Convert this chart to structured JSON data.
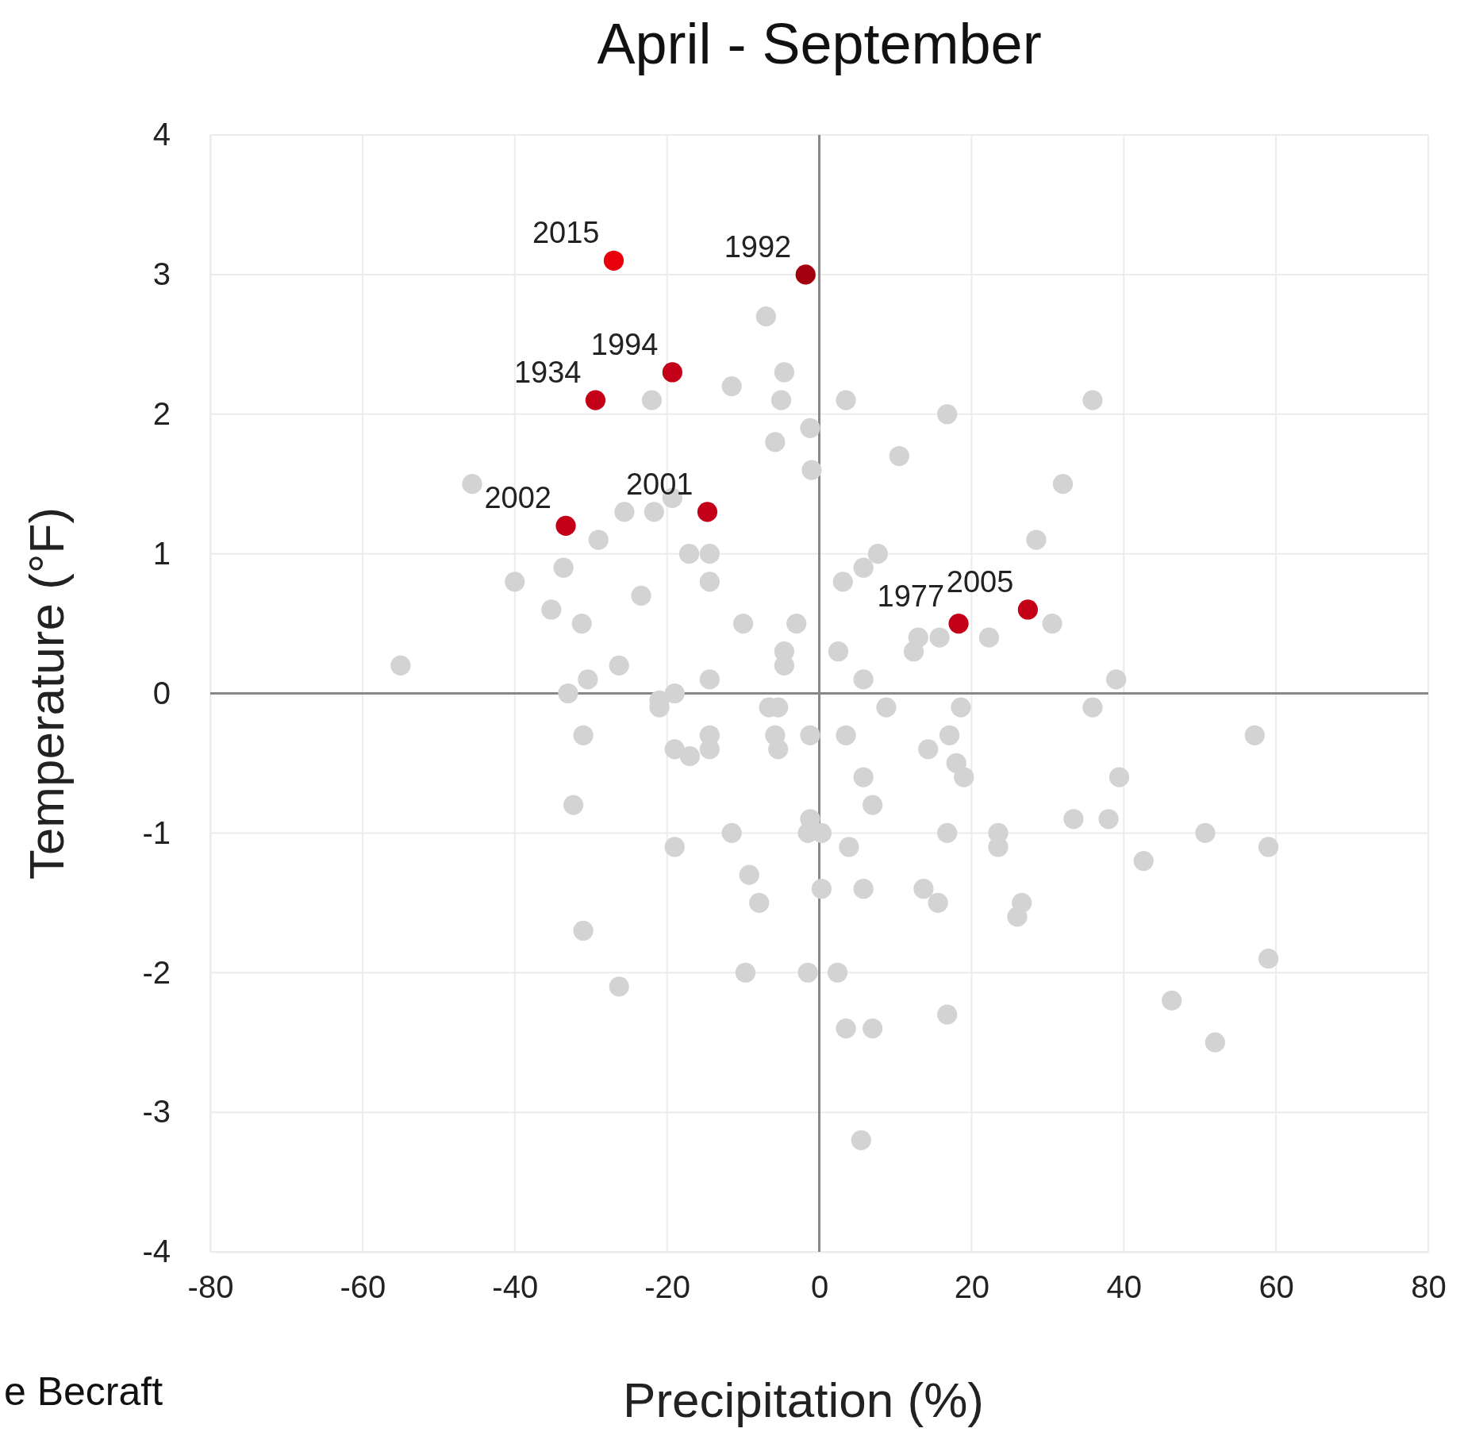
{
  "chart_data": {
    "type": "scatter",
    "title": "April - September",
    "xlabel": "Precipitation (%)",
    "ylabel": "Temperature (°F)",
    "xlim": [
      -80,
      80
    ],
    "xticks": [
      -80,
      -60,
      -40,
      -20,
      0,
      20,
      40,
      60,
      80
    ],
    "ylim": [
      -4,
      4
    ],
    "yticks": [
      -4,
      -3,
      -2,
      -1,
      0,
      1,
      2,
      3,
      4
    ],
    "grid": true,
    "marker": "circle",
    "series": [
      {
        "color": "#d3d3d3",
        "x": [
          -7,
          -11.5,
          -4.6,
          -5,
          -22,
          3.5,
          -1.2,
          -5.8,
          16.8,
          35.9,
          -1,
          10.5,
          32,
          -45.6,
          -25.6,
          -21.7,
          -19.3,
          -29,
          28.5,
          7.7,
          -17.1,
          -14.4,
          -33.6,
          5.8,
          3.1,
          -40,
          -14.4,
          -23.4,
          -35.2,
          -31.2,
          -10,
          -3,
          22.3,
          30.6,
          13,
          12.4,
          15.8,
          -4.6,
          -4.6,
          2.5,
          -55,
          -26.3,
          -30.4,
          -14.4,
          5.8,
          39,
          -33,
          -21,
          -19,
          -21,
          -6.6,
          -5.4,
          8.8,
          18.6,
          35.9,
          -31,
          -14.4,
          -5.8,
          -1.2,
          3.5,
          17.1,
          57.2,
          -19,
          -17,
          -14.4,
          -5.4,
          14.3,
          18,
          19,
          5.8,
          39.4,
          -32.3,
          7,
          -1.2,
          33.4,
          38,
          -11.5,
          -1.5,
          0.3,
          16.8,
          23.5,
          50.7,
          -19,
          3.9,
          23.5,
          59,
          42.6,
          -9.2,
          -7.9,
          5.8,
          0.3,
          13.7,
          15.6,
          26.6,
          26,
          -31,
          -9.7,
          -1.5,
          2.4,
          -26.3,
          59,
          46.3,
          16.8,
          3.5,
          7,
          52,
          5.5
        ],
        "values": [
          2.7,
          2.2,
          2.3,
          2.1,
          2.1,
          2.1,
          1.9,
          1.8,
          2.0,
          2.1,
          1.6,
          1.7,
          1.5,
          1.5,
          1.3,
          1.3,
          1.4,
          1.1,
          1.1,
          1.0,
          1.0,
          1.0,
          0.9,
          0.9,
          0.8,
          0.8,
          0.8,
          0.7,
          0.6,
          0.5,
          0.5,
          0.5,
          0.4,
          0.5,
          0.4,
          0.3,
          0.4,
          0.3,
          0.2,
          0.3,
          0.2,
          0.2,
          0.1,
          0.1,
          0.1,
          0.1,
          0.0,
          -0.05,
          0.0,
          -0.1,
          -0.1,
          -0.1,
          -0.1,
          -0.1,
          -0.1,
          -0.3,
          -0.3,
          -0.3,
          -0.3,
          -0.3,
          -0.3,
          -0.3,
          -0.4,
          -0.45,
          -0.4,
          -0.4,
          -0.4,
          -0.5,
          -0.6,
          -0.6,
          -0.6,
          -0.8,
          -0.8,
          -0.9,
          -0.9,
          -0.9,
          -1.0,
          -1.0,
          -1.0,
          -1.0,
          -1.0,
          -1.0,
          -1.1,
          -1.1,
          -1.1,
          -1.1,
          -1.2,
          -1.3,
          -1.5,
          -1.4,
          -1.4,
          -1.4,
          -1.5,
          -1.5,
          -1.6,
          -1.7,
          -2.0,
          -2.0,
          -2.0,
          -2.1,
          -1.9,
          -2.2,
          -2.3,
          -2.4,
          -2.4,
          -2.5,
          -3.2
        ]
      },
      {
        "color": "#a3000f",
        "x": [
          -1.8
        ],
        "values": [
          3.0
        ]
      },
      {
        "color": "#c40018",
        "x": [
          -19.3,
          -29.4,
          -33.3,
          -14.7,
          18.3,
          27.4
        ],
        "values": [
          2.3,
          2.1,
          1.2,
          1.3,
          0.5,
          0.6
        ]
      },
      {
        "color": "#e8000b",
        "x": [
          -27
        ],
        "values": [
          3.1
        ]
      }
    ],
    "annotations": [
      {
        "text": "2015",
        "x": -27,
        "y": 3.1
      },
      {
        "text": "1992",
        "x": -1.8,
        "y": 3.0
      },
      {
        "text": "1994",
        "x": -19.3,
        "y": 2.3
      },
      {
        "text": "1934",
        "x": -29.4,
        "y": 2.1
      },
      {
        "text": "2002",
        "x": -33.3,
        "y": 1.2
      },
      {
        "text": "2001",
        "x": -14.7,
        "y": 1.3
      },
      {
        "text": "1977",
        "x": 18.3,
        "y": 0.5
      },
      {
        "text": "2005",
        "x": 27.4,
        "y": 0.6
      },
      "e Becraft"
    ]
  }
}
